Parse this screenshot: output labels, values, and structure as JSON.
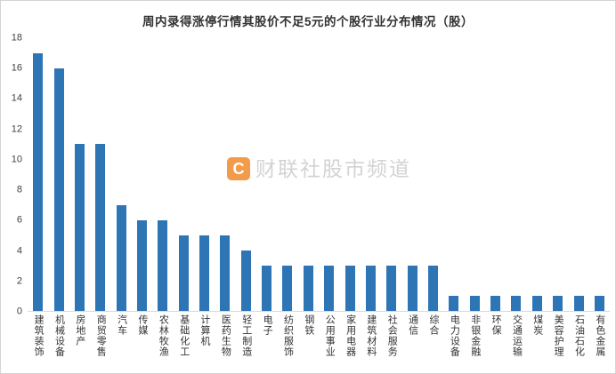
{
  "chart_data": {
    "type": "bar",
    "title": "周内录得涨停行情其股价不足5元的个股行业分布情况（股）",
    "categories": [
      "建筑装饰",
      "机械设备",
      "房地产",
      "商贸零售",
      "汽车",
      "传媒",
      "农林牧渔",
      "基础化工",
      "计算机",
      "医药生物",
      "轻工制造",
      "电子",
      "纺织服饰",
      "钢铁",
      "公用事业",
      "家用电器",
      "建筑材料",
      "社会服务",
      "通信",
      "综合",
      "电力设备",
      "非银金融",
      "环保",
      "交通运输",
      "煤炭",
      "美容护理",
      "石油石化",
      "有色金属"
    ],
    "values": [
      17,
      16,
      11,
      11,
      7,
      6,
      6,
      5,
      5,
      5,
      4,
      3,
      3,
      3,
      3,
      3,
      3,
      3,
      3,
      3,
      1,
      1,
      1,
      1,
      1,
      1,
      1,
      1
    ],
    "ylim": [
      0,
      18
    ],
    "yticks": [
      0,
      2,
      4,
      6,
      8,
      10,
      12,
      14,
      16,
      18
    ],
    "xlabel": "",
    "ylabel": "",
    "grid": false,
    "legend": "none",
    "bar_color": "#2e75b6"
  },
  "watermark": {
    "logo_letter": "C",
    "text": "财联社股市频道",
    "logo_color": "#f0831e",
    "text_color": "#c9c9c9"
  }
}
